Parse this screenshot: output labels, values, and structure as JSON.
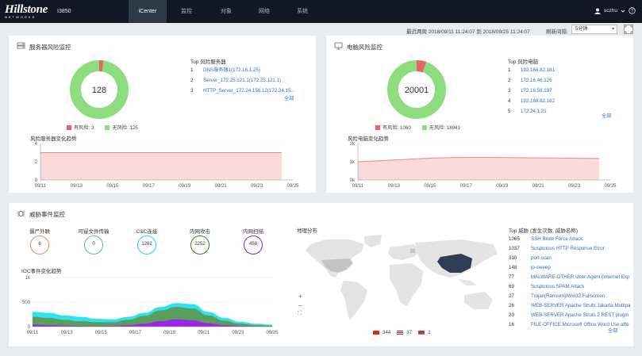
{
  "app": {
    "brand": "Hillstone",
    "brand_sub": "NETWORKS",
    "model": "I3850"
  },
  "nav": {
    "items": [
      {
        "label": "iCenter",
        "active": true
      },
      {
        "label": "监控",
        "active": false
      },
      {
        "label": "对象",
        "active": false
      },
      {
        "label": "网络",
        "active": false
      },
      {
        "label": "系统",
        "active": false
      }
    ]
  },
  "user": {
    "name": "sczhu"
  },
  "toolbar": {
    "range_text": "最近两周 2018/09/11 11:24:07 到 2018/09/25 11:24:07",
    "refresh_label": "刷新间隔:",
    "refresh_value": "5分钟"
  },
  "server_panel": {
    "title": "服务器风险监控",
    "donut_center": "128",
    "risk": 3,
    "norisk": 125,
    "legend_risk": "有风险: 3",
    "legend_norisk": "无风险: 125",
    "top_label": "Top 风险服务器",
    "top_items": [
      {
        "rank": "1",
        "name": "DNS服务器1(172.16.1.25)"
      },
      {
        "rank": "2",
        "name": "Server_172.25.121.1(172.25.121.1)"
      },
      {
        "rank": "3",
        "name": "HTTP_Server_172.24.156.12(172.24.15..."
      }
    ],
    "all_label": "全部",
    "trend_title": "风险服务器变化趋势",
    "trend": {
      "y_ticks": [
        "4",
        "2",
        "0"
      ],
      "ylim": [
        0,
        4
      ],
      "x_ticks": [
        "09/11",
        "09/13",
        "09/15",
        "09/17",
        "09/19",
        "09/21",
        "09/23",
        "09/25"
      ],
      "values": [
        3,
        3,
        3,
        3,
        3,
        3,
        3,
        3,
        3,
        3,
        3,
        3,
        3,
        3
      ]
    },
    "colors": {
      "risk": "#e96363",
      "norisk": "#8ddd80"
    }
  },
  "pc_panel": {
    "title": "电脑风险监控",
    "donut_center": "20001",
    "risk": 1060,
    "norisk": 18941,
    "legend_risk": "有风险: 1060",
    "legend_norisk": "无风险: 18941",
    "top_label": "Top 风险电脑",
    "top_items": [
      {
        "rank": "1",
        "name": "192.168.82.181"
      },
      {
        "rank": "2",
        "name": "172.16.46.126"
      },
      {
        "rank": "3",
        "name": "172.16.59.197"
      },
      {
        "rank": "4",
        "name": "192.168.82.182"
      },
      {
        "rank": "5",
        "name": "172.24.1.21"
      }
    ],
    "all_label": "全部",
    "trend_title": "风险电脑变化趋势",
    "trend": {
      "y_ticks": [
        "2k",
        "1k",
        "0k"
      ],
      "ylim": [
        0,
        2000
      ],
      "x_ticks": [
        "09/11",
        "09/13",
        "09/15",
        "09/17",
        "09/19",
        "09/21",
        "09/23",
        "09/25"
      ],
      "values": [
        1000,
        1050,
        1100,
        1150,
        1200,
        1230,
        1240,
        1240,
        1230,
        1220,
        1210,
        1200,
        1190,
        1180
      ]
    }
  },
  "threat_panel": {
    "title": "威胁事件监控",
    "counters": [
      {
        "label": "僵尸外联",
        "value": "6",
        "color": "#f08080"
      },
      {
        "label": "可疑文件传输",
        "value": "0",
        "color": "#6fa8dc"
      },
      {
        "label": "C&C连接",
        "value": "1262",
        "color": "#19d6e6"
      },
      {
        "label": "内网攻击",
        "value": "2252",
        "color": "#2e7d32"
      },
      {
        "label": "内网扫描",
        "value": "458",
        "color": "#8e24aa"
      }
    ],
    "ioc_title": "IOC事件变化趋势",
    "ioc": {
      "y_ticks": [
        "1k",
        "500",
        "0"
      ],
      "ylim": [
        0,
        1000
      ],
      "x_ticks": [
        "09/11",
        "09/13",
        "09/15",
        "09/17",
        "09/19",
        "09/21",
        "09/23",
        "09/25"
      ],
      "series": [
        {
          "color": "#21e3ee",
          "values": [
            300,
            280,
            230,
            200,
            160,
            150,
            200,
            280,
            400,
            480,
            460,
            300,
            180,
            100,
            60,
            40
          ]
        },
        {
          "color": "#5c9a52",
          "values": [
            200,
            180,
            140,
            110,
            90,
            90,
            140,
            220,
            330,
            400,
            370,
            230,
            120,
            60,
            30,
            20
          ]
        },
        {
          "color": "#a020f0",
          "values": [
            40,
            30,
            20,
            15,
            10,
            15,
            30,
            60,
            110,
            150,
            130,
            70,
            30,
            15,
            8,
            5
          ]
        }
      ]
    },
    "map_title": "地理分布",
    "map_legend": [
      {
        "flag": "cn",
        "value": "344"
      },
      {
        "flag": "us",
        "value": "37"
      },
      {
        "flag": "by",
        "value": "1"
      }
    ],
    "top_label": "Top 威胁 (发生次数, 威胁名称)",
    "top_items": [
      {
        "count": "1065",
        "name": "SSH Brute Force Attack"
      },
      {
        "count": "1037",
        "name": "Suspicious HTTP Response Error"
      },
      {
        "count": "310",
        "name": "port-scan"
      },
      {
        "count": "148",
        "name": "ip-sweep"
      },
      {
        "count": "77",
        "name": "MALWARE-OTHER User-Agent (Internet Exp"
      },
      {
        "count": "69",
        "name": "Suspicious SPAM Attack"
      },
      {
        "count": "27",
        "name": "Trojan[Ransom]/Win32.Fullscreen"
      },
      {
        "count": "26",
        "name": "WEB-SERVER Apache Struts Jakarta Multipa"
      },
      {
        "count": "20",
        "name": "WEB-SERVER Apache Struts 2 REST plugin"
      },
      {
        "count": "16",
        "name": "FILE-OFFICE Microsoft Office Word Use afte"
      }
    ],
    "all_label": "全部"
  }
}
